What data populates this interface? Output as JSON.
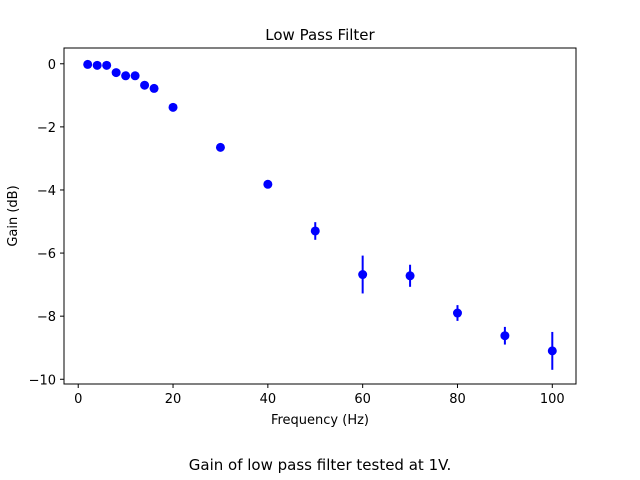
{
  "chart_data": {
    "type": "scatter",
    "title": "Low Pass Filter",
    "xlabel": "Frequency (Hz)",
    "ylabel": "Gain (dB)",
    "caption": "Gain of low pass filter tested at 1V.",
    "xlim": [
      -3,
      105
    ],
    "ylim": [
      -10.15,
      0.5
    ],
    "xticks": [
      0,
      20,
      40,
      60,
      80,
      100
    ],
    "yticks": [
      0,
      -2,
      -4,
      -6,
      -8,
      -10
    ],
    "xtick_labels": [
      "0",
      "20",
      "40",
      "60",
      "80",
      "100"
    ],
    "ytick_labels": [
      "0",
      "−2",
      "−4",
      "−6",
      "−8",
      "−10"
    ],
    "grid": false,
    "marker_color": "#0000ff",
    "series": [
      {
        "name": "gain",
        "x": [
          2,
          4,
          6,
          8,
          10,
          12,
          14,
          16,
          20,
          30,
          40,
          50,
          60,
          70,
          80,
          90,
          100
        ],
        "y": [
          -0.02,
          -0.05,
          -0.05,
          -0.28,
          -0.38,
          -0.38,
          -0.68,
          -0.78,
          -1.38,
          -2.65,
          -3.82,
          -5.3,
          -6.68,
          -6.72,
          -7.9,
          -8.62,
          -9.1
        ],
        "yerr": [
          0,
          0,
          0,
          0,
          0,
          0,
          0,
          0,
          0,
          0,
          0,
          0.28,
          0.6,
          0.35,
          0.25,
          0.28,
          0.6
        ]
      }
    ]
  }
}
